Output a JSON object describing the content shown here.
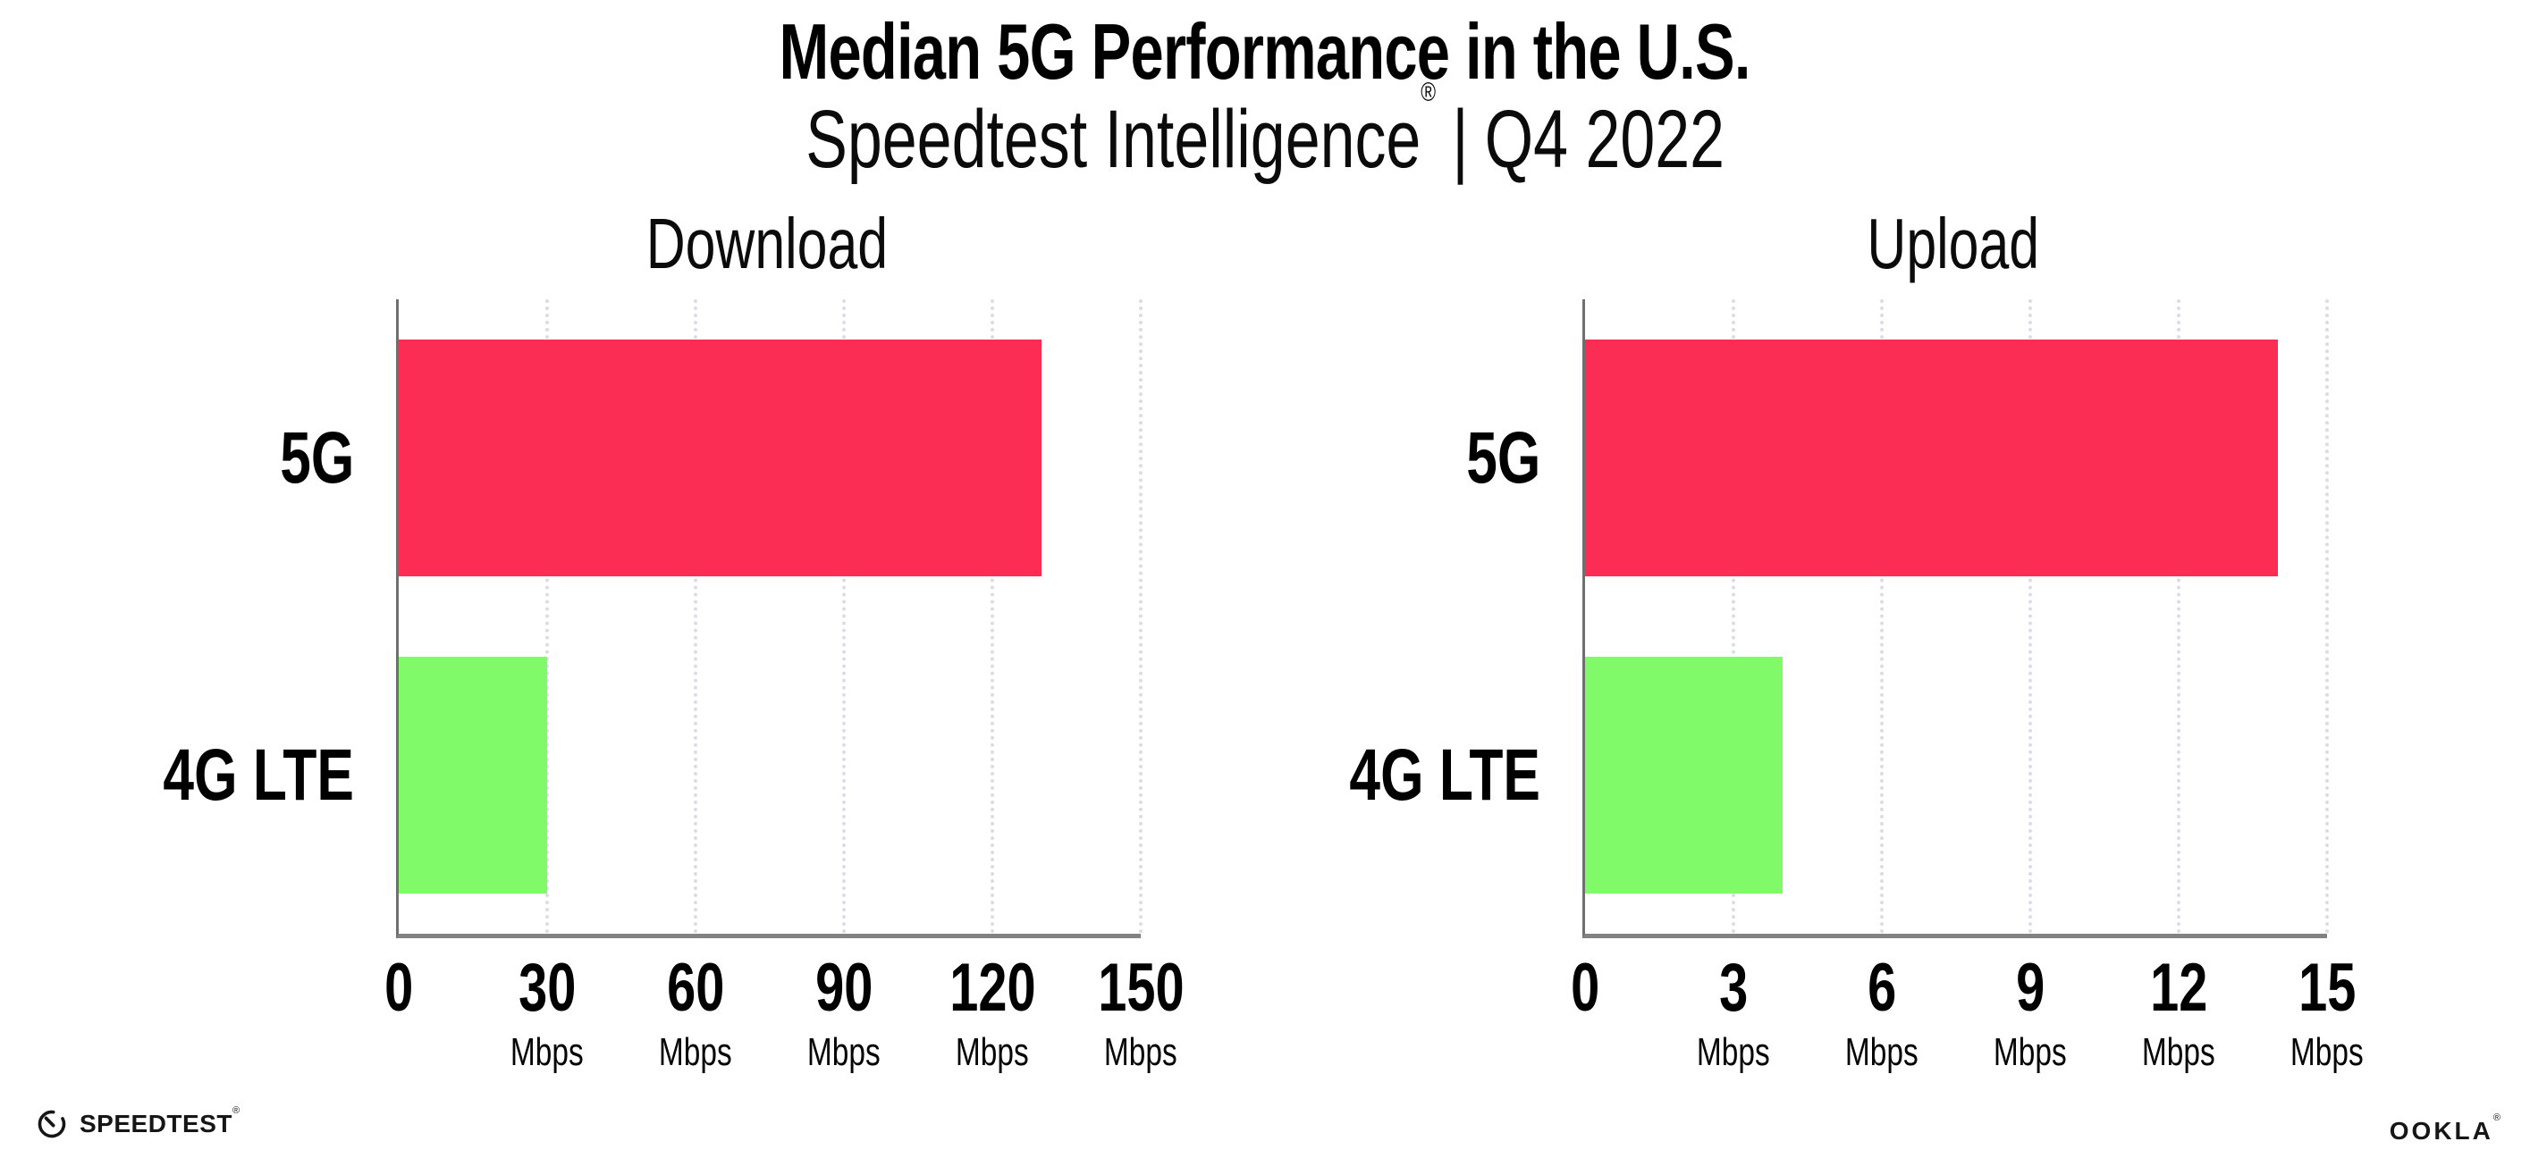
{
  "header": {
    "title": "Median 5G Performance in the U.S.",
    "subtitle_brand": "Speedtest Intelligence",
    "subtitle_reg": "®",
    "subtitle_separator": "|",
    "subtitle_period": "Q4 2022"
  },
  "chart_data": [
    {
      "type": "bar",
      "orientation": "horizontal",
      "title": "Download",
      "categories": [
        "5G",
        "4G LTE"
      ],
      "values": [
        130,
        30
      ],
      "unit": "Mbps",
      "xlabel": "",
      "ylabel": "",
      "xlim": [
        0,
        150
      ],
      "xticks": [
        0,
        30,
        60,
        90,
        120,
        150
      ],
      "bar_colors": [
        "#FC2D55",
        "#80FA68"
      ],
      "grid": "vertical-dotted",
      "legend": "none"
    },
    {
      "type": "bar",
      "orientation": "horizontal",
      "title": "Upload",
      "categories": [
        "5G",
        "4G LTE"
      ],
      "values": [
        14,
        4
      ],
      "unit": "Mbps",
      "xlabel": "",
      "ylabel": "",
      "xlim": [
        0,
        15
      ],
      "xticks": [
        0,
        3,
        6,
        9,
        12,
        15
      ],
      "bar_colors": [
        "#FC2D55",
        "#80FA68"
      ],
      "grid": "vertical-dotted",
      "legend": "none"
    }
  ],
  "footer": {
    "speedtest_label": "SPEEDTEST",
    "speedtest_mark": "®",
    "ookla_label": "OOKLA",
    "ookla_mark": "®"
  }
}
